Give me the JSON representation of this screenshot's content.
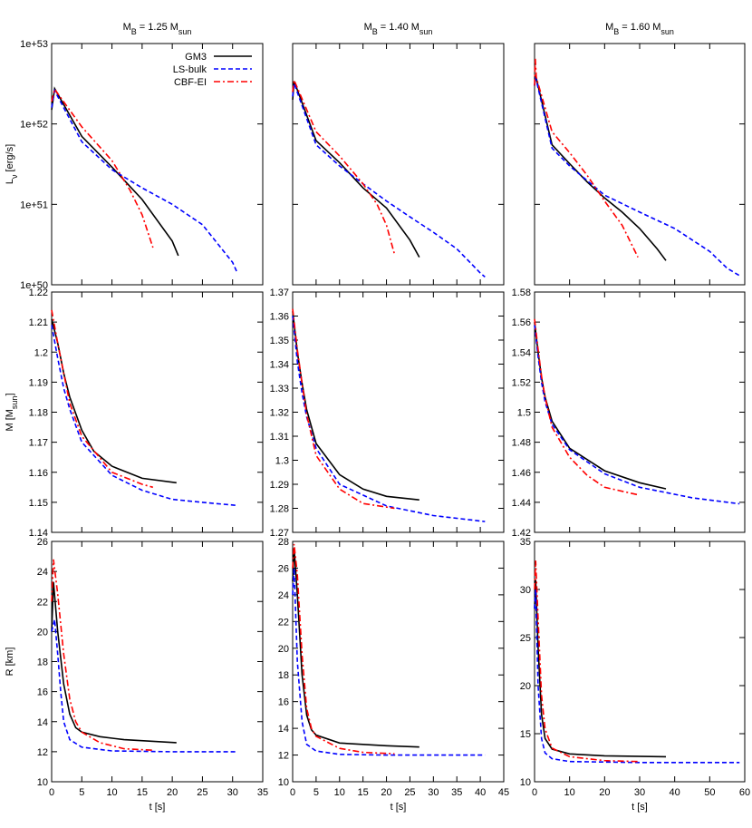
{
  "chart_data": [
    {
      "type": "line",
      "title": [
        "M",
        "B",
        " = 1.25 M",
        "sun"
      ],
      "ylabel": [
        "L",
        "ν",
        " [erg/s]"
      ],
      "ylog": true,
      "legend": "upper right",
      "xlim": [
        0,
        35
      ],
      "xticks": [
        0,
        5,
        10,
        15,
        20,
        25,
        30,
        35
      ],
      "xtick_labels": false,
      "ylim": [
        1e+50,
        1e+53
      ],
      "yticks": [
        {
          "value": 1e+50,
          "label": "1e+50"
        },
        {
          "value": 1e+51,
          "label": "1e+51"
        },
        {
          "value": 1e+52,
          "label": "1e+52"
        },
        {
          "value": 1e+53,
          "label": "1e+53"
        }
      ],
      "series": [
        {
          "name": "GM3",
          "color": "#000000",
          "dash": "solid",
          "x": [
            0,
            0.5,
            5,
            10,
            15,
            20,
            21
          ],
          "values": [
            1.5e+52,
            2.75e+52,
            7e+51,
            2.9e+51,
            1.15e+51,
            3.5e+50,
            2.3e+50
          ]
        },
        {
          "name": "LS-bulk",
          "color": "#0000ff",
          "dash": "dashed",
          "x": [
            0,
            0.5,
            5,
            10,
            15,
            20,
            25,
            30,
            30.7
          ],
          "values": [
            1.6e+52,
            2.6e+52,
            6e+51,
            2.7e+51,
            1.6e+51,
            1e+51,
            5.6e+50,
            1.9e+50,
            1.45e+50
          ]
        },
        {
          "name": "CBF-EI",
          "color": "#ff0000",
          "dash": "dashdot",
          "x": [
            0,
            0.5,
            5,
            10,
            13,
            15,
            16.8
          ],
          "values": [
            1.9e+52,
            2.7e+52,
            9.2e+51,
            3.5e+51,
            1.5e+51,
            7.4e+50,
            2.9e+50
          ]
        }
      ]
    },
    {
      "type": "line",
      "title": [
        "M",
        "B",
        " = 1.40 M",
        "sun"
      ],
      "ylog": true,
      "xlim": [
        0,
        45
      ],
      "xticks": [
        0,
        5,
        10,
        15,
        20,
        25,
        30,
        35,
        40,
        45
      ],
      "xtick_labels": false,
      "ylim": [
        1e+50,
        1e+53
      ],
      "yticks": [
        1e+50,
        1e+51,
        1e+52,
        1e+53
      ],
      "ytick_labels": false,
      "series": [
        {
          "color": "#000000",
          "dash": "solid",
          "x": [
            0,
            0.3,
            5,
            10,
            15,
            20,
            25,
            27
          ],
          "values": [
            2e+52,
            3.4e+52,
            6.2e+51,
            3.3e+51,
            1.6e+51,
            9e+50,
            3.6e+50,
            2.2e+50
          ]
        },
        {
          "color": "#0000ff",
          "dash": "dashed",
          "x": [
            0,
            0.3,
            5,
            10,
            15,
            20,
            25,
            30,
            35,
            40,
            41
          ],
          "values": [
            2.2e+52,
            3.2e+52,
            5.5e+51,
            3e+51,
            1.8e+51,
            1.1e+51,
            7e+50,
            4.5e+50,
            2.8e+50,
            1.4e+50,
            1.25e+50
          ]
        },
        {
          "color": "#ff0000",
          "dash": "dashdot",
          "x": [
            0,
            0.3,
            5,
            10,
            15,
            18,
            20,
            21.7
          ],
          "values": [
            2.5e+52,
            3.5e+52,
            8e+51,
            4e+51,
            1.8e+51,
            1e+51,
            5.5e+50,
            2.4e+50
          ]
        }
      ]
    },
    {
      "type": "line",
      "title": [
        "M",
        "B",
        " = 1.60 M",
        "sun"
      ],
      "ylog": true,
      "xlim": [
        0,
        60
      ],
      "xticks": [
        0,
        10,
        20,
        30,
        40,
        50,
        60
      ],
      "xtick_labels": false,
      "ylim": [
        1e+50,
        1e+53
      ],
      "yticks": [
        1e+50,
        1e+51,
        1e+52,
        1e+53
      ],
      "ytick_labels": false,
      "series": [
        {
          "color": "#000000",
          "dash": "solid",
          "x": [
            0,
            0.3,
            5,
            10,
            15,
            20,
            25,
            30,
            35,
            37.5
          ],
          "values": [
            3e+52,
            4e+52,
            5.5e+51,
            3.2e+51,
            1.9e+51,
            1.2e+51,
            8e+50,
            5e+50,
            2.8e+50,
            2e+50
          ]
        },
        {
          "color": "#0000ff",
          "dash": "dashed",
          "x": [
            0,
            0.3,
            5,
            10,
            20,
            30,
            40,
            50,
            55,
            58.5
          ],
          "values": [
            3e+52,
            3.8e+52,
            5e+51,
            3e+51,
            1.3e+51,
            8e+50,
            5e+50,
            2.6e+50,
            1.6e+50,
            1.3e+50
          ]
        },
        {
          "color": "#ff0000",
          "dash": "dashdot",
          "x": [
            0,
            0.2,
            0.5,
            5,
            10,
            15,
            20,
            25,
            29.5
          ],
          "values": [
            3e+52,
            6.5e+52,
            3.8e+52,
            8e+51,
            4.4e+51,
            2.3e+51,
            1.1e+51,
            5.5e+50,
            2.2e+50
          ]
        }
      ]
    },
    {
      "type": "line",
      "ylabel": [
        "M [M",
        "sun",
        "]"
      ],
      "xlim": [
        0,
        35
      ],
      "xticks": [
        0,
        5,
        10,
        15,
        20,
        25,
        30,
        35
      ],
      "xtick_labels": false,
      "ylim": [
        1.14,
        1.22
      ],
      "yticks": [
        1.14,
        1.15,
        1.16,
        1.17,
        1.18,
        1.19,
        1.2,
        1.21,
        1.22
      ],
      "series": [
        {
          "color": "#000000",
          "dash": "solid",
          "x": [
            0,
            1,
            2,
            3,
            5,
            7,
            10,
            15,
            20.7
          ],
          "values": [
            1.211,
            1.203,
            1.193,
            1.185,
            1.174,
            1.167,
            1.162,
            1.158,
            1.1565
          ]
        },
        {
          "color": "#0000ff",
          "dash": "dashed",
          "x": [
            0,
            1,
            2,
            3,
            5,
            10,
            15,
            20,
            25,
            30.5
          ],
          "values": [
            1.209,
            1.198,
            1.188,
            1.181,
            1.17,
            1.159,
            1.154,
            1.151,
            1.15,
            1.149
          ]
        },
        {
          "color": "#ff0000",
          "dash": "dashdot",
          "x": [
            0,
            1,
            2,
            3,
            5,
            10,
            15,
            16.8
          ],
          "values": [
            1.214,
            1.203,
            1.193,
            1.183,
            1.172,
            1.16,
            1.156,
            1.155
          ]
        }
      ]
    },
    {
      "type": "line",
      "xlim": [
        0,
        45
      ],
      "xticks": [
        0,
        5,
        10,
        15,
        20,
        25,
        30,
        35,
        40,
        45
      ],
      "xtick_labels": false,
      "ylim": [
        1.27,
        1.37
      ],
      "yticks": [
        1.27,
        1.28,
        1.29,
        1.3,
        1.31,
        1.32,
        1.33,
        1.34,
        1.35,
        1.36,
        1.37
      ],
      "series": [
        {
          "color": "#000000",
          "dash": "solid",
          "x": [
            0,
            1,
            2,
            3,
            5,
            10,
            15,
            20,
            27
          ],
          "values": [
            1.362,
            1.345,
            1.332,
            1.321,
            1.307,
            1.294,
            1.288,
            1.285,
            1.2835
          ]
        },
        {
          "color": "#0000ff",
          "dash": "dashed",
          "x": [
            0,
            1,
            2,
            3,
            5,
            10,
            20,
            30,
            41
          ],
          "values": [
            1.36,
            1.341,
            1.328,
            1.318,
            1.305,
            1.29,
            1.281,
            1.277,
            1.2745
          ]
        },
        {
          "color": "#ff0000",
          "dash": "dashdot",
          "x": [
            0,
            1,
            2,
            3,
            5,
            10,
            15,
            21.7
          ],
          "values": [
            1.363,
            1.346,
            1.332,
            1.319,
            1.302,
            1.288,
            1.282,
            1.28
          ]
        }
      ]
    },
    {
      "type": "line",
      "xlim": [
        0,
        60
      ],
      "xticks": [
        0,
        10,
        20,
        30,
        40,
        50,
        60
      ],
      "xtick_labels": false,
      "ylim": [
        1.42,
        1.58
      ],
      "yticks": [
        1.42,
        1.44,
        1.46,
        1.48,
        1.5,
        1.52,
        1.54,
        1.56,
        1.58
      ],
      "series": [
        {
          "color": "#000000",
          "dash": "solid",
          "x": [
            0,
            1,
            2,
            3,
            5,
            10,
            20,
            30,
            37.5
          ],
          "values": [
            1.56,
            1.54,
            1.523,
            1.51,
            1.494,
            1.476,
            1.461,
            1.453,
            1.449
          ]
        },
        {
          "color": "#0000ff",
          "dash": "dashed",
          "x": [
            0,
            1,
            2,
            3,
            5,
            10,
            20,
            30,
            45,
            58.5
          ],
          "values": [
            1.558,
            1.537,
            1.52,
            1.507,
            1.492,
            1.475,
            1.459,
            1.45,
            1.443,
            1.439
          ]
        },
        {
          "color": "#ff0000",
          "dash": "dashdot",
          "x": [
            0,
            1,
            2,
            3,
            5,
            10,
            15,
            20,
            29.5
          ],
          "values": [
            1.562,
            1.542,
            1.524,
            1.51,
            1.49,
            1.47,
            1.458,
            1.45,
            1.445
          ]
        }
      ]
    },
    {
      "type": "line",
      "ylabel": [
        "R [km]"
      ],
      "xlabel": "t [s]",
      "xlim": [
        0,
        35
      ],
      "xticks": [
        0,
        5,
        10,
        15,
        20,
        25,
        30,
        35
      ],
      "ylim": [
        10,
        26
      ],
      "yticks": [
        10,
        12,
        14,
        16,
        18,
        20,
        22,
        24,
        26
      ],
      "series": [
        {
          "color": "#000000",
          "dash": "solid",
          "x": [
            0,
            0.3,
            1,
            2,
            3,
            4,
            5,
            8,
            12,
            20.7
          ],
          "values": [
            20,
            23.3,
            20,
            16.5,
            14.5,
            13.6,
            13.3,
            13,
            12.8,
            12.6
          ]
        },
        {
          "color": "#0000ff",
          "dash": "dashed",
          "x": [
            0,
            0.5,
            1,
            1.5,
            2,
            3,
            5,
            10,
            20,
            30.5
          ],
          "values": [
            20,
            20.8,
            18.5,
            16,
            14,
            12.8,
            12.3,
            12.05,
            12,
            12
          ]
        },
        {
          "color": "#ff0000",
          "dash": "dashdot",
          "x": [
            0,
            0.3,
            1,
            2,
            3,
            4,
            5,
            8,
            12,
            16.8
          ],
          "values": [
            22,
            24.8,
            22.5,
            18.5,
            15.5,
            14,
            13.3,
            12.6,
            12.2,
            12.1
          ]
        }
      ]
    },
    {
      "type": "line",
      "xlabel": "t [s]",
      "xlim": [
        0,
        45
      ],
      "xticks": [
        0,
        5,
        10,
        15,
        20,
        25,
        30,
        35,
        40,
        45
      ],
      "ylim": [
        10,
        28
      ],
      "yticks": [
        10,
        12,
        14,
        16,
        18,
        20,
        22,
        24,
        26,
        28
      ],
      "series": [
        {
          "color": "#000000",
          "dash": "solid",
          "x": [
            0,
            0.3,
            1,
            2,
            3,
            4,
            5,
            10,
            20,
            27
          ],
          "values": [
            25,
            27.5,
            24,
            18,
            15,
            13.9,
            13.5,
            12.9,
            12.7,
            12.6
          ]
        },
        {
          "color": "#0000ff",
          "dash": "dashed",
          "x": [
            0,
            0.3,
            1,
            2,
            3,
            5,
            10,
            20,
            41
          ],
          "values": [
            24,
            26,
            19,
            14.5,
            12.8,
            12.3,
            12.05,
            12,
            12
          ]
        },
        {
          "color": "#ff0000",
          "dash": "dashdot",
          "x": [
            0,
            0.3,
            1,
            2,
            3,
            4,
            5,
            10,
            15,
            21.7
          ],
          "values": [
            26,
            27.8,
            25.5,
            19.5,
            15.5,
            14,
            13.4,
            12.5,
            12.2,
            12.1
          ]
        }
      ]
    },
    {
      "type": "line",
      "xlabel": "t [s]",
      "xlim": [
        0,
        60
      ],
      "xticks": [
        0,
        10,
        20,
        30,
        40,
        50,
        60
      ],
      "ylim": [
        10,
        35
      ],
      "yticks": [
        10,
        15,
        20,
        25,
        30,
        35
      ],
      "series": [
        {
          "color": "#000000",
          "dash": "solid",
          "x": [
            0,
            0.3,
            1,
            2,
            3,
            5,
            10,
            20,
            37.5
          ],
          "values": [
            28,
            31,
            24,
            17,
            14.5,
            13.4,
            12.9,
            12.7,
            12.6
          ]
        },
        {
          "color": "#0000ff",
          "dash": "dashed",
          "x": [
            0,
            0.3,
            1,
            2,
            3,
            5,
            10,
            30,
            58.5
          ],
          "values": [
            28,
            30,
            20,
            14.5,
            13,
            12.4,
            12.1,
            12,
            12
          ]
        },
        {
          "color": "#ff0000",
          "dash": "dashdot",
          "x": [
            0,
            0.3,
            1,
            2,
            3,
            5,
            10,
            20,
            29.5
          ],
          "values": [
            30,
            33,
            27,
            19,
            15.5,
            13.5,
            12.6,
            12.2,
            12.1
          ]
        }
      ]
    }
  ]
}
